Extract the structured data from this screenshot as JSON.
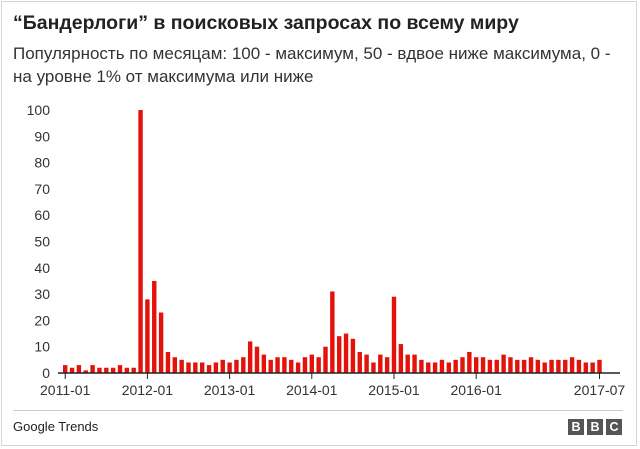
{
  "title": "“Бандерлоги” в поисковых запросах по всему миру",
  "subtitle": "Популярность по месяцам: 100 - максимум, 50 - вдвое ниже максимума, 0 - на уровне 1% от максимума или ниже",
  "source": "Google Trends",
  "logo": {
    "letters": [
      "B",
      "B",
      "C"
    ]
  },
  "colors": {
    "bar": "#e3120b",
    "axis": "#222222",
    "grid": "#dddddd"
  },
  "chart_data": {
    "type": "bar",
    "title": "“Бандерлоги” в поисковых запросах по всему миру",
    "xlabel": "",
    "ylabel": "",
    "ylim": [
      0,
      100
    ],
    "yticks": [
      0,
      10,
      20,
      30,
      40,
      50,
      60,
      70,
      80,
      90,
      100
    ],
    "x_tick_labels": [
      "2011-01",
      "2012-01",
      "2013-01",
      "2014-01",
      "2015-01",
      "2016-01",
      "2017-07"
    ],
    "x_tick_months": [
      "2011-01",
      "2012-01",
      "2013-01",
      "2014-01",
      "2015-01",
      "2016-01",
      "2017-07"
    ],
    "grid": false,
    "legend": "none",
    "categories": [
      "2011-01",
      "2011-02",
      "2011-03",
      "2011-04",
      "2011-05",
      "2011-06",
      "2011-07",
      "2011-08",
      "2011-09",
      "2011-10",
      "2011-11",
      "2011-12",
      "2012-01",
      "2012-02",
      "2012-03",
      "2012-04",
      "2012-05",
      "2012-06",
      "2012-07",
      "2012-08",
      "2012-09",
      "2012-10",
      "2012-11",
      "2012-12",
      "2013-01",
      "2013-02",
      "2013-03",
      "2013-04",
      "2013-05",
      "2013-06",
      "2013-07",
      "2013-08",
      "2013-09",
      "2013-10",
      "2013-11",
      "2013-12",
      "2014-01",
      "2014-02",
      "2014-03",
      "2014-04",
      "2014-05",
      "2014-06",
      "2014-07",
      "2014-08",
      "2014-09",
      "2014-10",
      "2014-11",
      "2014-12",
      "2015-01",
      "2015-02",
      "2015-03",
      "2015-04",
      "2015-05",
      "2015-06",
      "2015-07",
      "2015-08",
      "2015-09",
      "2015-10",
      "2015-11",
      "2015-12",
      "2016-01",
      "2016-02",
      "2016-03",
      "2016-04",
      "2016-05",
      "2016-06",
      "2016-07",
      "2016-08",
      "2016-09",
      "2016-10",
      "2016-11",
      "2016-12",
      "2017-01",
      "2017-02",
      "2017-03",
      "2017-04",
      "2017-05",
      "2017-06",
      "2017-07"
    ],
    "values": [
      3,
      2,
      3,
      1,
      3,
      2,
      2,
      2,
      3,
      2,
      2,
      100,
      28,
      35,
      23,
      8,
      6,
      5,
      4,
      4,
      4,
      3,
      4,
      5,
      4,
      5,
      6,
      12,
      10,
      7,
      5,
      6,
      6,
      5,
      4,
      6,
      7,
      6,
      10,
      31,
      14,
      15,
      13,
      8,
      7,
      4,
      7,
      6,
      29,
      11,
      7,
      7,
      5,
      4,
      4,
      5,
      4,
      5,
      6,
      8,
      6,
      6,
      5,
      5,
      7,
      6,
      5,
      5,
      6,
      5,
      4,
      5,
      5,
      5,
      6,
      5,
      4,
      4,
      5
    ]
  }
}
